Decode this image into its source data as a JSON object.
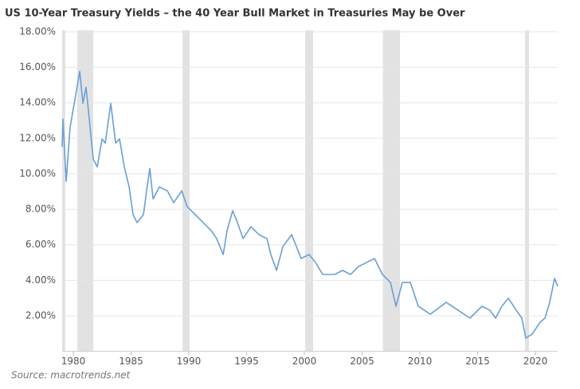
{
  "chart_data": {
    "type": "line",
    "title": "US 10-Year Treasury Yields – the 40 Year Bull Market in Treasuries May be Over",
    "source": "Source: macrotrends.net",
    "color": "#6a9fd4",
    "shade_color": "#e2e2e2",
    "grid": true,
    "xlim": [
      1979.03,
      2021.93
    ],
    "ylim": [
      0,
      18
    ],
    "xticks": [
      1980,
      1985,
      1990,
      1995,
      2000,
      2005,
      2010,
      2015,
      2020
    ],
    "yticks": [
      {
        "value": 2,
        "label": "2.00%"
      },
      {
        "value": 4,
        "label": "4.00%"
      },
      {
        "value": 6,
        "label": "6.00%"
      },
      {
        "value": 8,
        "label": "8.00%"
      },
      {
        "value": 10,
        "label": "10.00%"
      },
      {
        "value": 12,
        "label": "12.00%"
      },
      {
        "value": 14,
        "label": "14.00%"
      },
      {
        "value": 16,
        "label": "16.00%"
      },
      {
        "value": 18,
        "label": "18.00%"
      }
    ],
    "shaded_ranges": [
      [
        1979.03,
        1979.3
      ],
      [
        1980.34,
        1981.72
      ],
      [
        1989.45,
        1990.07
      ],
      [
        2000.07,
        2000.76
      ],
      [
        2006.8,
        2008.28
      ],
      [
        2019.1,
        2019.45
      ]
    ],
    "x": [
      1979.03,
      1979.1,
      1979.38,
      1979.72,
      1980.14,
      1980.55,
      1980.83,
      1981.1,
      1981.38,
      1981.72,
      1982.07,
      1982.48,
      1982.76,
      1983.24,
      1983.66,
      1984.0,
      1984.41,
      1984.83,
      1985.17,
      1985.52,
      1986.07,
      1986.34,
      1986.62,
      1986.9,
      1987.45,
      1988.14,
      1988.69,
      1989.38,
      1989.86,
      1990.55,
      1991.24,
      1991.93,
      1992.41,
      1992.97,
      1993.31,
      1993.79,
      1994.21,
      1994.69,
      1995.38,
      1996.07,
      1996.76,
      1997.1,
      1997.59,
      1998.14,
      1998.9,
      1999.72,
      2000.41,
      2000.97,
      2001.59,
      2002.07,
      2002.62,
      2003.31,
      2004.0,
      2004.69,
      2005.38,
      2006.07,
      2006.76,
      2007.45,
      2007.93,
      2008.48,
      2009.17,
      2009.86,
      2010.9,
      2012.28,
      2013.31,
      2014.34,
      2015.38,
      2016.07,
      2016.55,
      2017.1,
      2017.66,
      2018.34,
      2018.83,
      2019.17,
      2019.72,
      2020.41,
      2020.83,
      2021.24,
      2021.66,
      2021.93
    ],
    "values": [
      11.51,
      13.08,
      9.58,
      12.63,
      14.2,
      15.77,
      13.97,
      14.87,
      13.08,
      10.83,
      10.39,
      11.96,
      11.73,
      13.97,
      11.73,
      11.96,
      10.39,
      9.26,
      7.7,
      7.25,
      7.7,
      9.04,
      10.3,
      8.59,
      9.26,
      9.04,
      8.37,
      9.04,
      8.14,
      7.7,
      7.25,
      6.8,
      6.35,
      5.45,
      6.8,
      7.92,
      7.25,
      6.35,
      7.02,
      6.57,
      6.35,
      5.45,
      4.56,
      5.9,
      6.57,
      5.23,
      5.45,
      5.0,
      4.33,
      4.33,
      4.33,
      4.56,
      4.33,
      4.78,
      5.0,
      5.23,
      4.33,
      3.88,
      2.54,
      3.88,
      3.88,
      2.54,
      2.09,
      2.76,
      2.31,
      1.87,
      2.54,
      2.31,
      1.87,
      2.54,
      2.99,
      2.31,
      1.87,
      0.74,
      0.97,
      1.64,
      1.87,
      2.76,
      4.11,
      3.66
    ]
  }
}
